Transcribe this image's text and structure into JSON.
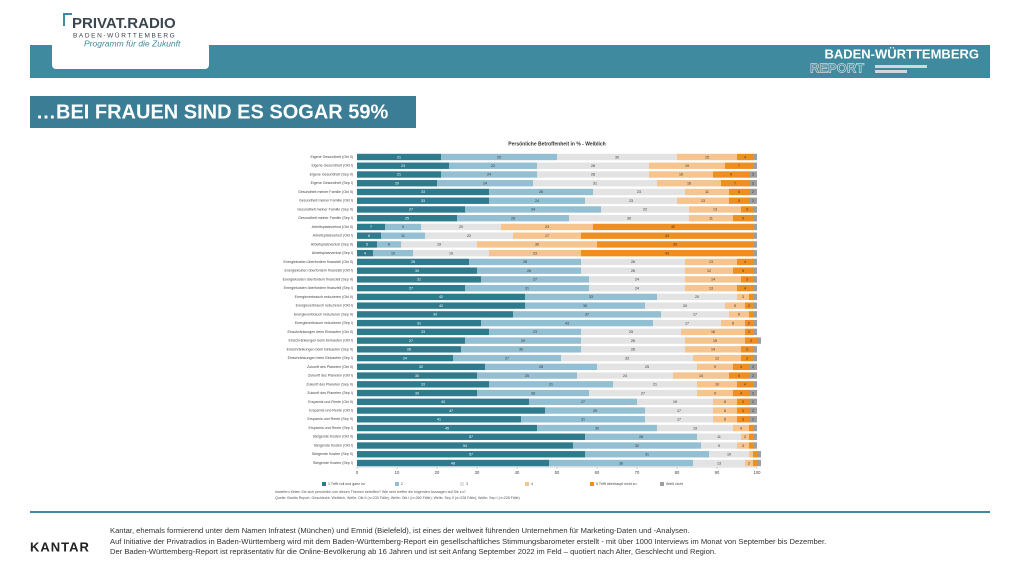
{
  "logo": {
    "name": "PRIVAT.RADIO",
    "region": "BADEN-WÜRTTEMBERG",
    "slogan": "Programm für die Zukunft"
  },
  "report": {
    "line1": "BADEN-WÜRTTEMBERG",
    "line2": "REPORT"
  },
  "headline": "…BEI FRAUEN SIND ES SOGAR 59%",
  "chart_data": {
    "type": "stacked-bar-horizontal",
    "title": "Persönliche Betroffenheit in % - Weiblich",
    "categories": [
      "Eigene Gesundheit (Okt II)",
      "Eigene Gesundheit (Okt I)",
      "Eigene Gesundheit (Sep II)",
      "Eigene Gesundheit (Sep I)",
      "Gesundheit meiner Familie (Okt II)",
      "Gesundheit meiner Familie (Okt I)",
      "Gesundheit meiner Familie (Sep II)",
      "Gesundheit meiner Familie (Sep I)",
      "Arbeitsplatzverlust (Okt II)",
      "Arbeitsplatzverlust (Okt I)",
      "Arbeitsplatzverlust (Sep II)",
      "Arbeitsplatzverlust (Sep I)",
      "Energiekosten überfordern finanziell (Okt II)",
      "Energiekosten überfordern finanziell (Okt I)",
      "Energiekosten überfordern finanziell (Sep II)",
      "Energiekosten überfordern finanziell (Sep I)",
      "Energieverbrauch reduzieren (Okt II)",
      "Energieverbrauch reduzieren (Okt I)",
      "Energieverbrauch reduzieren (Sep II)",
      "Energieverbrauch reduzieren (Sep I)",
      "Einschränkungen beim Einkaufen (Okt II)",
      "Einschränkungen beim Einkaufen (Okt I)",
      "Einschränkungen beim Einkaufen (Sep II)",
      "Einschränkungen beim Einkaufen (Sep I)",
      "Zukunft des Planeten (Okt II)",
      "Zukunft des Planeten (Okt I)",
      "Zukunft des Planeten (Sep II)",
      "Zukunft des Planeten (Sep I)",
      "Ersparnis und Rente (Okt II)",
      "Ersparnis und Rente (Okt I)",
      "Ersparnis und Rente (Sep II)",
      "Ersparnis und Rente (Sep I)",
      "Steigende Kosten (Okt II)",
      "Steigende Kosten (Okt I)",
      "Steigende Kosten (Sep II)",
      "Steigende Kosten (Sep I)"
    ],
    "series": [
      {
        "name": "1 Trifft voll und ganz zu",
        "color": "#2f7b8e",
        "values": [
          21,
          23,
          21,
          20,
          33,
          33,
          27,
          25,
          7,
          6,
          5,
          4,
          28,
          30,
          31,
          27,
          42,
          42,
          39,
          31,
          33,
          27,
          26,
          24,
          32,
          30,
          33,
          30,
          43,
          47,
          41,
          45,
          57,
          54,
          57,
          48
        ]
      },
      {
        "name": "2",
        "color": "#93bfd2",
        "values": [
          29,
          22,
          24,
          24,
          26,
          24,
          34,
          28,
          9,
          11,
          6,
          10,
          28,
          26,
          27,
          31,
          33,
          30,
          37,
          43,
          23,
          29,
          30,
          27,
          28,
          25,
          31,
          28,
          27,
          25,
          31,
          30,
          28,
          32,
          31,
          36
        ]
      },
      {
        "name": "3",
        "color": "#e3e3e3",
        "values": [
          30,
          28,
          28,
          31,
          23,
          23,
          22,
          30,
          20,
          22,
          19,
          19,
          26,
          26,
          24,
          24,
          20,
          20,
          17,
          17,
          25,
          26,
          26,
          33,
          25,
          24,
          21,
          27,
          19,
          17,
          17,
          19,
          11,
          9,
          10,
          13
        ]
      },
      {
        "name": "4",
        "color": "#f5c48f",
        "values": [
          15,
          19,
          16,
          16,
          11,
          13,
          13,
          11,
          23,
          17,
          30,
          23,
          13,
          12,
          14,
          13,
          3,
          5,
          5,
          6,
          16,
          15,
          14,
          12,
          9,
          14,
          10,
          9,
          6,
          6,
          6,
          4,
          2,
          3,
          1,
          2
        ]
      },
      {
        "name": "5 Trifft überhaupt nicht zu",
        "color": "#ef8f22",
        "values": [
          4,
          7,
          9,
          7,
          5,
          5,
          3,
          5,
          40,
          43,
          39,
          43,
          4,
          5,
          3,
          4,
          1,
          2,
          1,
          2,
          2,
          3,
          3,
          3,
          4,
          5,
          4,
          4,
          3,
          3,
          3,
          1,
          1,
          1,
          1,
          1
        ]
      },
      {
        "name": "Weiß nicht",
        "color": "#9e9e9e",
        "values": [
          1,
          1,
          2,
          2,
          2,
          2,
          1,
          1,
          1,
          1,
          1,
          1,
          1,
          1,
          1,
          1,
          1,
          1,
          1,
          1,
          1,
          1,
          1,
          1,
          2,
          2,
          1,
          2,
          2,
          2,
          2,
          1,
          1,
          1,
          1,
          1
        ]
      }
    ],
    "xlim": [
      0,
      100
    ],
    "xticks": [
      0,
      10,
      20,
      30,
      40,
      50,
      60,
      70,
      80,
      90,
      100
    ],
    "question": "Inwiefern fühlen Sie sich persönlich von diesen Themen betroffen? Wie sehr treffen die folgenden Aussagen auf Sie zu?",
    "source": "Quelle: Baröts Report, Geschlecht: Weiblich, Welle: Okt II (n=230 Fälle); Welle: Okt I (n=260 Fälle); Welle: Sep II (n=228 Fälle); Welle: Sep I (n=228 Fälle)"
  },
  "footer": {
    "brand": "KANTAR",
    "lines": [
      "Kantar, ehemals formierend unter dem Namen Infratest (München) und Emnid (Bielefeld), ist eines der weltweit führenden Unternehmen für Marketing-Daten und -Analysen.",
      "Auf Initiative der Privatradios in Baden-Württemberg wird mit dem Baden-Württemberg-Report ein gesellschaftliches Stimmungsbarometer erstellt - mit über 1000 Interviews im Monat von September bis Dezember.",
      "Der Baden-Württemberg-Report ist repräsentativ für die Online-Bevölkerung ab 16 Jahren und ist seit Anfang September 2022 im Feld – quotiert nach Alter, Geschlecht und Region."
    ]
  }
}
